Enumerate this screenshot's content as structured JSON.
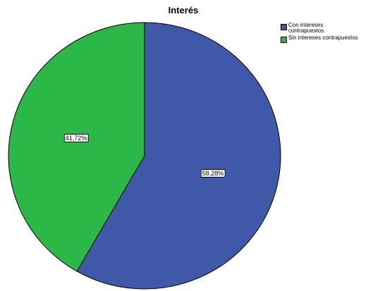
{
  "chart_data": {
    "type": "pie",
    "title": "Interés",
    "legend_position": "top-right",
    "start_angle_deg": 0,
    "direction": "clockwise",
    "slices": [
      {
        "label": "Con intereses contrapuestos",
        "legend_lines": [
          "Con intereses",
          "contrapuestos"
        ],
        "value": 58.28,
        "data_label": "58,28%",
        "color": "#3f58a8"
      },
      {
        "label": "Sin intereses contrapuestos",
        "legend_lines": [
          "Sin intereses contrapuestos"
        ],
        "value": 41.72,
        "data_label": "41,72%",
        "color": "#2cb847"
      }
    ]
  }
}
